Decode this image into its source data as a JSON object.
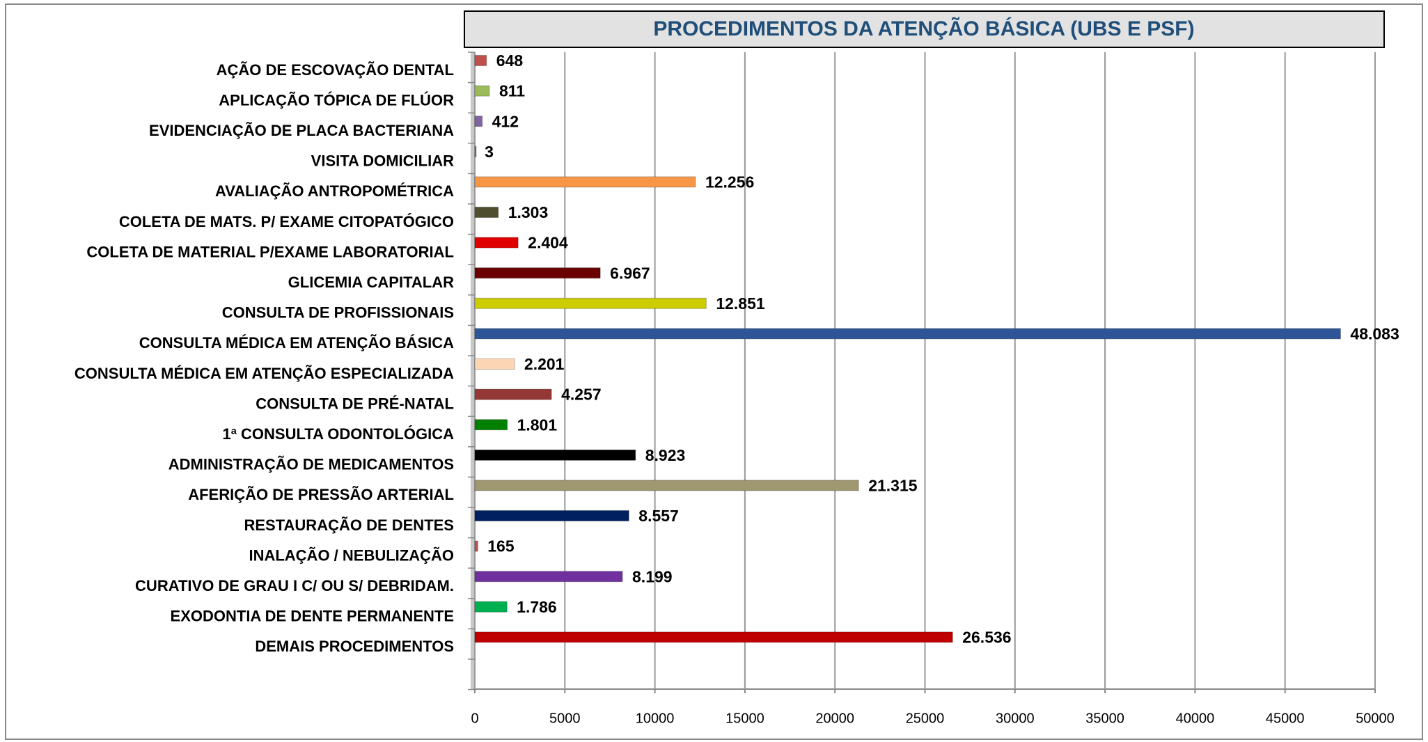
{
  "chart_data": {
    "type": "hbar",
    "title": "PROCEDIMENTOS DA ATENÇÃO BÁSICA (UBS E PSF)",
    "categories": [
      "AÇÃO DE ESCOVAÇÃO DENTAL",
      "APLICAÇÃO TÓPICA DE FLÚOR",
      "EVIDENCIAÇÃO DE PLACA BACTERIANA",
      "VISITA DOMICILIAR",
      "AVALIAÇÃO ANTROPOMÉTRICA",
      "COLETA DE MATS. P/ EXAME CITOPATÓGICO",
      "COLETA DE MATERIAL P/EXAME LABORATORIAL",
      "GLICEMIA CAPITALAR",
      "CONSULTA DE PROFISSIONAIS",
      "CONSULTA MÉDICA EM ATENÇÃO BÁSICA",
      "CONSULTA MÉDICA EM ATENÇÃO ESPECIALIZADA",
      "CONSULTA DE PRÉ-NATAL",
      "1ª CONSULTA ODONTOLÓGICA",
      "ADMINISTRAÇÃO DE MEDICAMENTOS",
      "AFERIÇÃO DE PRESSÃO ARTERIAL",
      "RESTAURAÇÃO DE DENTES",
      "INALAÇÃO / NEBULIZAÇÃO",
      "CURATIVO DE GRAU I C/ OU S/ DEBRIDAM.",
      "EXODONTIA DE DENTE PERMANENTE",
      "DEMAIS PROCEDIMENTOS"
    ],
    "values": [
      648,
      811,
      412,
      3,
      12256,
      1303,
      2404,
      6967,
      12851,
      48083,
      2201,
      4257,
      1801,
      8923,
      21315,
      8557,
      165,
      8199,
      1786,
      26536
    ],
    "value_labels": [
      "648",
      "811",
      "412",
      "3",
      "12.256",
      "1.303",
      "2.404",
      "6.967",
      "12.851",
      "48.083",
      "2.201",
      "4.257",
      "1.801",
      "8.923",
      "21.315",
      "8.557",
      "165",
      "8.199",
      "1.786",
      "26.536"
    ],
    "colors": [
      "#c0504d",
      "#9bbb59",
      "#8064a2",
      "#4f81bd",
      "#f79646",
      "#4f4f2f",
      "#e00000",
      "#6b0000",
      "#cccc00",
      "#2e5597",
      "#fcd5b4",
      "#953735",
      "#008000",
      "#000000",
      "#a09870",
      "#002060",
      "#c0504d",
      "#7030a0",
      "#00b050",
      "#c00000"
    ],
    "xlim": [
      0,
      50000
    ],
    "xticks": [
      0,
      5000,
      10000,
      15000,
      20000,
      25000,
      30000,
      35000,
      40000,
      45000,
      50000
    ],
    "grid": true
  }
}
